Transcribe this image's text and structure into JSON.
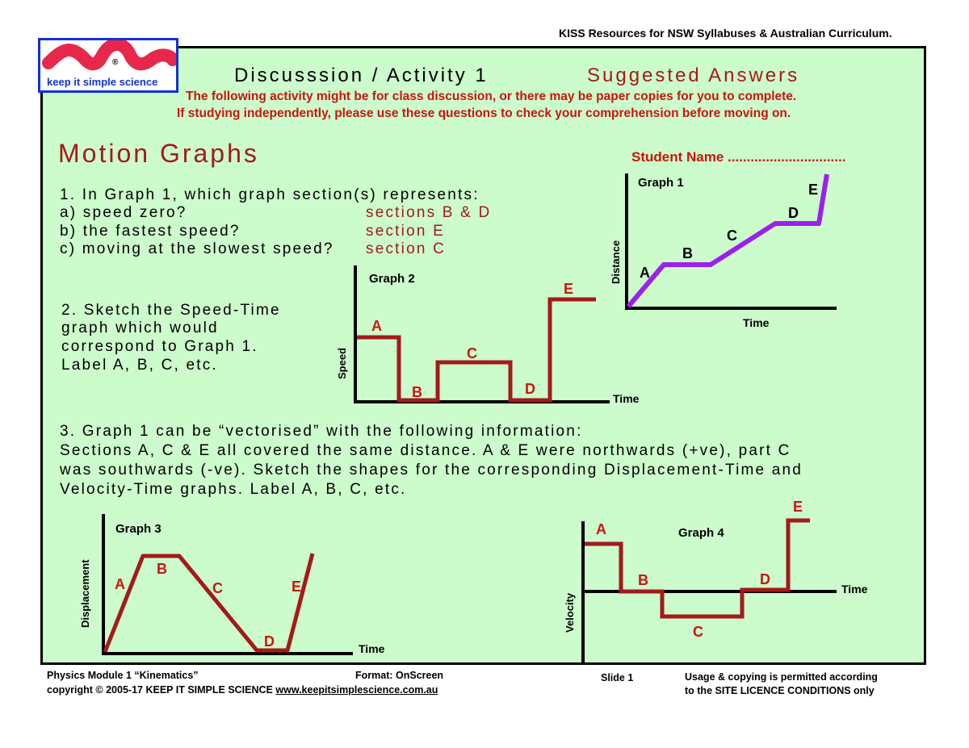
{
  "header": {
    "top_right": "KISS Resources for NSW Syllabuses & Australian Curriculum.",
    "activity_title": "Discusssion / Activity 1",
    "suggested": "Suggested Answers",
    "intro_line1": "The following activity might be for class discussion, or there may be paper copies for you to complete.",
    "intro_line2": "If studying independently, please use these questions to check your comprehension before moving on."
  },
  "logo": {
    "text": "keep it simple science",
    "reg": "®",
    "brand_color": "#e8284a",
    "border_color": "#1233d6"
  },
  "main": {
    "title": "Motion Graphs",
    "student_name": "Student Name ...............................",
    "q1": {
      "question": "1. In Graph 1, which graph section(s) represents:",
      "a": "a) speed zero?",
      "a_ans": "sections B & D",
      "b": "b) the fastest speed?",
      "b_ans": "section E",
      "c": "c) moving at the slowest speed?",
      "c_ans": "section C"
    },
    "q2": [
      "2. Sketch the Speed-Time",
      "graph which would",
      "correspond to Graph 1.",
      "Label A, B, C, etc."
    ],
    "q3": [
      "3. Graph 1 can be “vectorised” with the following information:",
      "Sections A, C & E all covered the same distance. A & E were northwards (+ve), part C",
      "was southwards (-ve). Sketch the shapes for the corresponding Displacement-Time and",
      "Velocity-Time graphs. Label A, B, C, etc."
    ]
  },
  "graphs": {
    "graph1": {
      "title": "Graph 1",
      "xlabel": "Time",
      "ylabel": "Distance",
      "color": "#9b1ff0",
      "labels": [
        "A",
        "B",
        "C",
        "D",
        "E"
      ]
    },
    "graph2": {
      "title": "Graph 2",
      "xlabel": "Time",
      "ylabel": "Speed",
      "color": "#a31a1a",
      "labels": [
        "A",
        "B",
        "C",
        "D",
        "E"
      ]
    },
    "graph3": {
      "title": "Graph 3",
      "xlabel": "Time",
      "ylabel": "Displacement",
      "color": "#a31a1a",
      "labels": [
        "A",
        "B",
        "C",
        "D",
        "E"
      ]
    },
    "graph4": {
      "title": "Graph 4",
      "xlabel": "Time",
      "ylabel": "Velocity",
      "color": "#a31a1a",
      "labels": [
        "A",
        "B",
        "C",
        "D",
        "E"
      ]
    }
  },
  "footer": {
    "module": "Physics Module 1 “Kinematics”",
    "copyright": "copyright © 2005-17 KEEP IT SIMPLE SCIENCE",
    "url": "www.keepitsimplescience.com.au",
    "format": "Format: OnScreen",
    "slide": "Slide 1",
    "usage1": "Usage & copying is permitted according",
    "usage2": "to the SITE LICENCE CONDITIONS only"
  }
}
